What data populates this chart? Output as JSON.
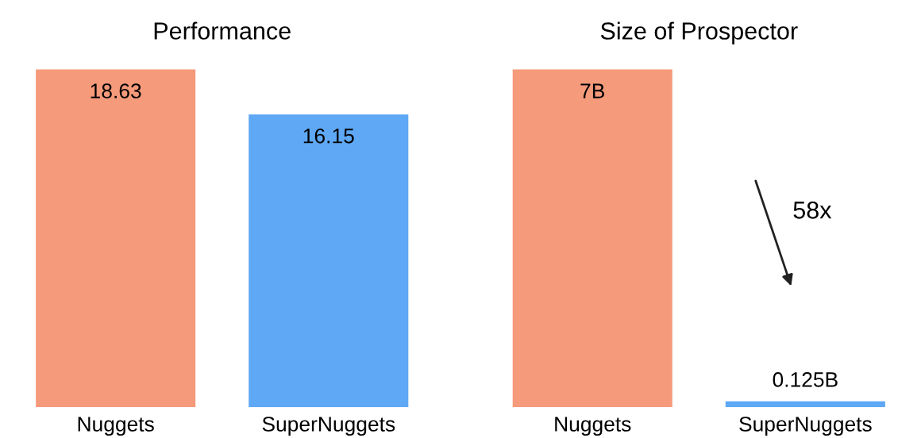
{
  "chart_data": [
    {
      "type": "bar",
      "title": "Performance",
      "categories": [
        "Nuggets",
        "SuperNuggets"
      ],
      "values": [
        18.63,
        16.15
      ],
      "colors": [
        "#f59a7a",
        "#5fa8f5"
      ],
      "data_labels": true,
      "grid": false,
      "legend": false
    },
    {
      "type": "bar",
      "title": "Size of Prospector",
      "categories": [
        "Nuggets",
        "SuperNuggets"
      ],
      "values": [
        7,
        0.125
      ],
      "value_labels": [
        "7B",
        "0.125B"
      ],
      "colors": [
        "#f59a7a",
        "#5fa8f5"
      ],
      "annotations": [
        "58x"
      ],
      "grid": false,
      "legend": false
    }
  ]
}
